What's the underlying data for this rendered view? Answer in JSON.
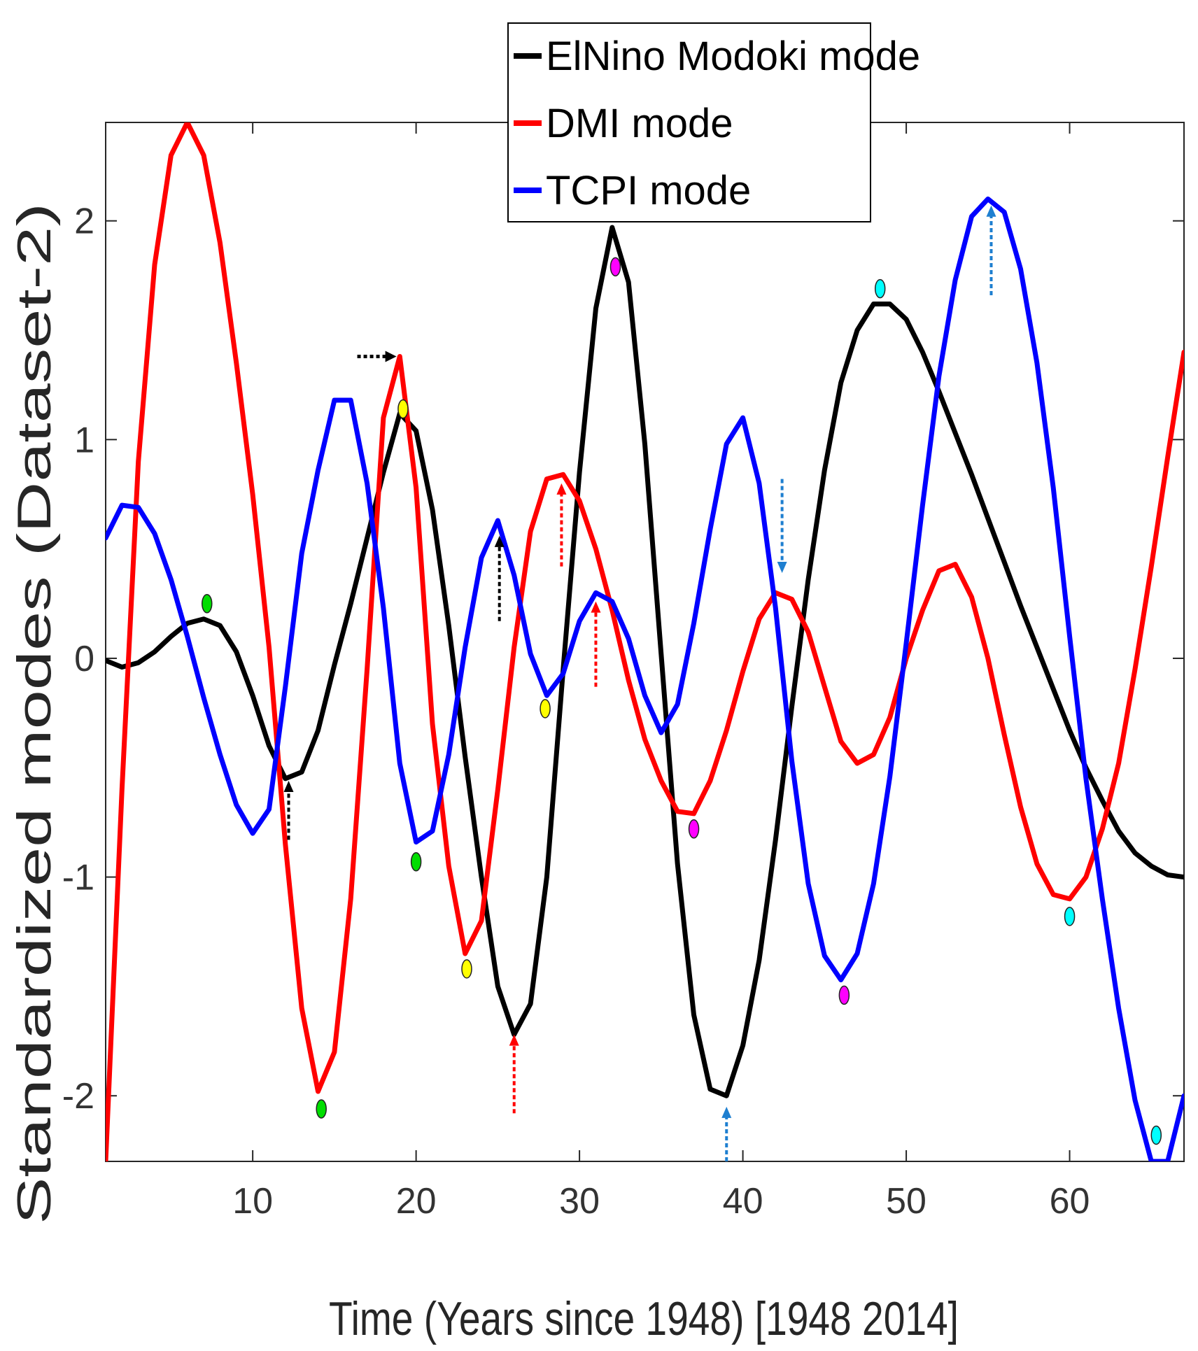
{
  "chart_data": {
    "type": "line",
    "xlabel": "Time (Years since 1948) [1948 2014]",
    "ylabel": "Standardized modes (Dataset-2)",
    "xlim": [
      1,
      67
    ],
    "ylim": [
      -2.3,
      2.45
    ],
    "xticks": [
      10,
      20,
      30,
      40,
      50,
      60
    ],
    "yticks": [
      -2,
      -1,
      0,
      1,
      2
    ],
    "grid": false,
    "legend_position": "top-center",
    "series": [
      {
        "name": "ElNino Modoki mode",
        "color": "#000000",
        "x": [
          1,
          2,
          3,
          4,
          5,
          6,
          7,
          8,
          9,
          10,
          11,
          12,
          13,
          14,
          15,
          16,
          17,
          18,
          19,
          20,
          21,
          22,
          23,
          24,
          25,
          26,
          27,
          28,
          29,
          30,
          31,
          32,
          33,
          34,
          35,
          36,
          37,
          38,
          39,
          40,
          41,
          42,
          43,
          44,
          45,
          46,
          47,
          48,
          49,
          50,
          51,
          52,
          53,
          54,
          55,
          56,
          57,
          58,
          59,
          60,
          61,
          62,
          63,
          64,
          65,
          66,
          67
        ],
        "y": [
          -0.01,
          -0.04,
          -0.02,
          0.03,
          0.1,
          0.16,
          0.18,
          0.15,
          0.03,
          -0.17,
          -0.4,
          -0.55,
          -0.52,
          -0.33,
          -0.03,
          0.25,
          0.55,
          0.85,
          1.12,
          1.04,
          0.68,
          0.15,
          -0.45,
          -1.0,
          -1.5,
          -1.72,
          -1.58,
          -1.0,
          -0.05,
          0.85,
          1.6,
          1.97,
          1.72,
          0.98,
          0.02,
          -0.94,
          -1.63,
          -1.97,
          -2.0,
          -1.77,
          -1.38,
          -0.83,
          -0.22,
          0.36,
          0.86,
          1.26,
          1.5,
          1.62,
          1.62,
          1.55,
          1.4,
          1.22,
          1.03,
          0.84,
          0.64,
          0.44,
          0.24,
          0.05,
          -0.14,
          -0.33,
          -0.5,
          -0.65,
          -0.79,
          -0.89,
          -0.95,
          -0.99,
          -1.0
        ]
      },
      {
        "name": "DMI mode",
        "color": "#ff0000",
        "x": [
          1,
          2,
          3,
          4,
          5,
          6,
          7,
          8,
          9,
          10,
          11,
          12,
          13,
          14,
          15,
          16,
          17,
          18,
          19,
          20,
          21,
          22,
          23,
          24,
          25,
          26,
          27,
          28,
          29,
          30,
          31,
          32,
          33,
          34,
          35,
          36,
          37,
          38,
          39,
          40,
          41,
          42,
          43,
          44,
          45,
          46,
          47,
          48,
          49,
          50,
          51,
          52,
          53,
          54,
          55,
          56,
          57,
          58,
          59,
          60,
          61,
          62,
          63,
          64,
          65,
          66,
          67
        ],
        "y": [
          -2.3,
          -0.6,
          0.9,
          1.8,
          2.3,
          2.45,
          2.3,
          1.9,
          1.35,
          0.75,
          0.05,
          -0.85,
          -1.6,
          -1.98,
          -1.8,
          -1.1,
          -0.05,
          1.1,
          1.38,
          0.78,
          -0.3,
          -0.95,
          -1.35,
          -1.2,
          -0.6,
          0.05,
          0.58,
          0.82,
          0.84,
          0.72,
          0.5,
          0.22,
          -0.1,
          -0.37,
          -0.56,
          -0.7,
          -0.71,
          -0.56,
          -0.33,
          -0.06,
          0.18,
          0.3,
          0.27,
          0.12,
          -0.13,
          -0.38,
          -0.48,
          -0.44,
          -0.27,
          0.0,
          0.22,
          0.4,
          0.43,
          0.28,
          0.0,
          -0.35,
          -0.68,
          -0.94,
          -1.08,
          -1.1,
          -1.0,
          -0.78,
          -0.48,
          -0.05,
          0.42,
          0.92,
          1.4
        ]
      },
      {
        "name": "TCPI mode",
        "color": "#0000ff",
        "x": [
          1,
          2,
          3,
          4,
          5,
          6,
          7,
          8,
          9,
          10,
          11,
          12,
          13,
          14,
          15,
          16,
          17,
          18,
          19,
          20,
          21,
          22,
          23,
          24,
          25,
          26,
          27,
          28,
          29,
          30,
          31,
          32,
          33,
          34,
          35,
          36,
          37,
          38,
          39,
          40,
          41,
          42,
          43,
          44,
          45,
          46,
          47,
          48,
          49,
          50,
          51,
          52,
          53,
          54,
          55,
          56,
          57,
          58,
          59,
          60,
          61,
          62,
          63,
          64,
          65,
          66,
          67
        ],
        "y": [
          0.55,
          0.7,
          0.69,
          0.57,
          0.36,
          0.1,
          -0.18,
          -0.44,
          -0.67,
          -0.8,
          -0.69,
          -0.13,
          0.48,
          0.86,
          1.18,
          1.18,
          0.8,
          0.23,
          -0.48,
          -0.84,
          -0.79,
          -0.44,
          0.05,
          0.46,
          0.63,
          0.38,
          0.02,
          -0.17,
          -0.07,
          0.17,
          0.3,
          0.26,
          0.09,
          -0.17,
          -0.34,
          -0.21,
          0.16,
          0.59,
          0.98,
          1.1,
          0.8,
          0.23,
          -0.47,
          -1.03,
          -1.36,
          -1.47,
          -1.35,
          -1.03,
          -0.54,
          0.07,
          0.7,
          1.29,
          1.73,
          2.02,
          2.1,
          2.04,
          1.78,
          1.35,
          0.78,
          0.1,
          -0.55,
          -1.1,
          -1.6,
          -2.02,
          -2.3,
          -2.3,
          -2.0
        ]
      }
    ],
    "markers": [
      {
        "x": 7.2,
        "y": 0.25,
        "color": "#00dd00"
      },
      {
        "x": 14.2,
        "y": -2.06,
        "color": "#00dd00"
      },
      {
        "x": 20.0,
        "y": -0.93,
        "color": "#00dd00"
      },
      {
        "x": 19.2,
        "y": 1.14,
        "color": "#ffff00"
      },
      {
        "x": 23.1,
        "y": -1.42,
        "color": "#ffff00"
      },
      {
        "x": 27.9,
        "y": -0.23,
        "color": "#ffff00"
      },
      {
        "x": 32.2,
        "y": 1.79,
        "color": "#ff00ff"
      },
      {
        "x": 37.0,
        "y": -0.78,
        "color": "#ff00ff"
      },
      {
        "x": 46.2,
        "y": -1.54,
        "color": "#ff00ff"
      },
      {
        "x": 48.4,
        "y": 1.69,
        "color": "#00ffff"
      },
      {
        "x": 60.0,
        "y": -1.18,
        "color": "#00ffff"
      },
      {
        "x": 65.3,
        "y": -2.18,
        "color": "#00ffff"
      }
    ],
    "annotation_arrows": [
      {
        "x": 12.2,
        "y_from": -0.83,
        "y_to": -0.56,
        "direction": "up",
        "color": "#000000"
      },
      {
        "x1": 16.4,
        "x2": 18.8,
        "y": 1.38,
        "direction": "right",
        "color": "#000000"
      },
      {
        "x": 25.1,
        "y_from": 0.17,
        "y_to": 0.56,
        "direction": "up",
        "color": "#000000"
      },
      {
        "x": 26.0,
        "y_from": -2.08,
        "y_to": -1.72,
        "direction": "up",
        "color": "#ff0000"
      },
      {
        "x": 28.9,
        "y_from": 0.42,
        "y_to": 0.8,
        "direction": "up",
        "color": "#ff0000"
      },
      {
        "x": 31.0,
        "y_from": -0.13,
        "y_to": 0.26,
        "direction": "up",
        "color": "#ff0000"
      },
      {
        "x": 39.0,
        "y_from": -2.3,
        "y_to": -2.05,
        "direction": "up",
        "color": "#1e7fd0"
      },
      {
        "x": 42.4,
        "y_from": 0.82,
        "y_to": 0.39,
        "direction": "down",
        "color": "#1e7fd0"
      },
      {
        "x": 55.2,
        "y_from": 1.66,
        "y_to": 2.07,
        "direction": "up",
        "color": "#1e7fd0"
      }
    ]
  }
}
